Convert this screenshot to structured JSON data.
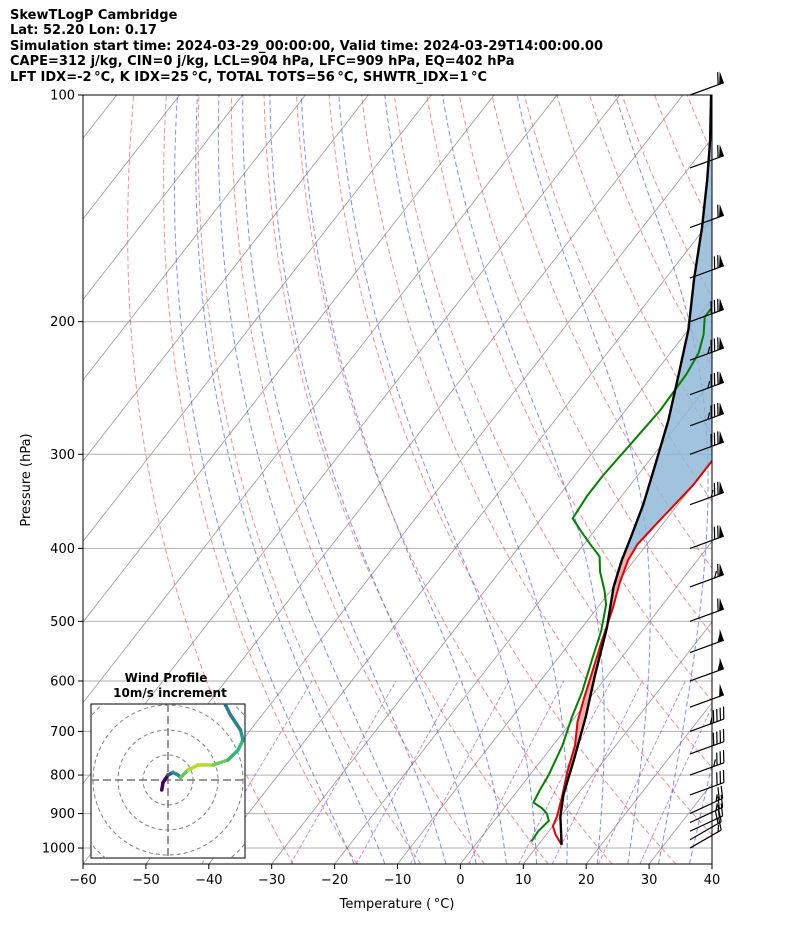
{
  "header": {
    "line1": "SkewTLogP Cambridge",
    "line2": "Lat: 52.20   Lon: 0.17",
    "line3": "Simulation start time: 2024-03-29_00:00:00, Valid time: 2024-03-29T14:00:00.00",
    "line4": "CAPE=312 j/kg, CIN=0 j/kg, LCL=904 hPa, LFC=909 hPa, EQ=402 hPa",
    "line5": "LFT IDX=-2 °C, K IDX=25 °C, TOTAL TOTS=56 °C, SHWTR_IDX=1 °C"
  },
  "colors": {
    "temperature": "#e00000",
    "dewpoint": "#008000",
    "parcel": "#000000",
    "cape_fill": "#8ab4d6",
    "cin_fill": "#e88a8a",
    "dry_adiabat": "#ff4d4d",
    "moist_adiabat": "#3355ff",
    "mixing_ratio": "#9933cc",
    "isotherm": "#999999",
    "isobar": "#b0b0b0"
  },
  "chart_data": [
    {
      "type": "line",
      "subtype": "skew-t log-p",
      "title": "",
      "xlabel": "Temperature ( °C)",
      "ylabel": "Pressure (hPa)",
      "xlim": [
        -60,
        40
      ],
      "ylim": [
        1050,
        100
      ],
      "y_scale": "log",
      "grid": true,
      "xticks": [
        "−60",
        "−50",
        "−40",
        "−30",
        "−20",
        "−10",
        "0",
        "10",
        "20",
        "30",
        "40"
      ],
      "yticks": [
        "100",
        "200",
        "300",
        "400",
        "500",
        "600",
        "700",
        "800",
        "900",
        "1000"
      ],
      "series": [
        {
          "role": "temperature",
          "points": [
            [
              13.7,
              990
            ],
            [
              11.5,
              960
            ],
            [
              10,
              935
            ],
            [
              9.5,
              910
            ],
            [
              8,
              860
            ],
            [
              5.5,
              790
            ],
            [
              3.5,
              730
            ],
            [
              1,
              680
            ],
            [
              -1,
              630
            ],
            [
              -3,
              580
            ],
            [
              -5,
              535
            ],
            [
              -7.5,
              480
            ],
            [
              -9.5,
              445
            ],
            [
              -11,
              415
            ],
            [
              -11.5,
              395
            ],
            [
              -11,
              370
            ],
            [
              -10.5,
              350
            ],
            [
              -10,
              330
            ],
            [
              -10,
              305
            ],
            [
              -9.5,
              280
            ],
            [
              -8,
              260
            ],
            [
              -4.5,
              230
            ],
            [
              -1.5,
              210
            ],
            [
              2.5,
              195
            ],
            [
              5,
              182
            ],
            [
              7,
              170
            ],
            [
              8,
              160
            ],
            [
              9,
              150
            ],
            [
              10,
              140
            ],
            [
              11.5,
              130
            ],
            [
              13,
              122
            ],
            [
              15,
              116
            ],
            [
              17,
              110
            ],
            [
              19.5,
              106
            ],
            [
              21,
              103
            ],
            [
              22,
              100
            ]
          ]
        },
        {
          "role": "dewpoint",
          "points": [
            [
              8.5,
              980
            ],
            [
              8.3,
              950
            ],
            [
              8.7,
              920
            ],
            [
              7.5,
              900
            ],
            [
              6,
              885
            ],
            [
              4,
              870
            ],
            [
              3.5,
              840
            ],
            [
              3,
              800
            ],
            [
              1.5,
              730
            ],
            [
              -0.5,
              670
            ],
            [
              -2,
              620
            ],
            [
              -4.5,
              560
            ],
            [
              -6.5,
              515
            ],
            [
              -9,
              475
            ],
            [
              -11,
              455
            ],
            [
              -14,
              430
            ],
            [
              -16,
              410
            ],
            [
              -19,
              395
            ],
            [
              -22,
              380
            ],
            [
              -25,
              365
            ],
            [
              -25.5,
              340
            ],
            [
              -25.5,
              320
            ],
            [
              -25,
              290
            ],
            [
              -24.5,
              262
            ],
            [
              -24.8,
              235
            ],
            [
              -25.5,
              220
            ],
            [
              -27,
              208
            ],
            [
              -29,
              197
            ],
            [
              -29,
              185
            ],
            [
              -27.5,
              175
            ],
            [
              -25,
              160
            ],
            [
              -22,
              144
            ],
            [
              -19.5,
              131
            ],
            [
              -17,
              120
            ],
            [
              -14.5,
              110
            ],
            [
              -13,
              104
            ],
            [
              -12,
              100
            ]
          ]
        },
        {
          "role": "parcel",
          "points": [
            [
              13.7,
              990
            ],
            [
              10,
              908
            ],
            [
              7.8,
              850
            ],
            [
              5,
              760
            ],
            [
              1.7,
              670
            ],
            [
              -2,
              590
            ],
            [
              -6,
              510
            ],
            [
              -10,
              450
            ],
            [
              -12,
              415
            ],
            [
              -13.5,
              385
            ],
            [
              -15.5,
              350
            ],
            [
              -18.5,
              310
            ],
            [
              -22,
              270
            ],
            [
              -26,
              235
            ],
            [
              -30,
              205
            ],
            [
              -35.5,
              175
            ],
            [
              -40.5,
              150
            ],
            [
              -45.5,
              130
            ],
            [
              -50,
              115
            ],
            [
              -55.5,
              100
            ]
          ]
        }
      ],
      "shaded_regions": [
        {
          "label": "CAPE",
          "between": [
            "parcel",
            "temperature"
          ],
          "pressure_range": [
            402,
            100
          ]
        },
        {
          "label": "CIN",
          "between": [
            "parcel",
            "temperature"
          ],
          "pressure_range": [
            908,
            402
          ]
        }
      ],
      "wind_barbs": {
        "levels_hpa": [
          1000,
          975,
          950,
          925,
          900,
          850,
          800,
          750,
          700,
          650,
          600,
          550,
          500,
          450,
          400,
          350,
          300,
          275,
          250,
          225,
          200,
          175,
          150,
          125,
          100
        ],
        "speeds_kt": [
          15,
          20,
          20,
          25,
          25,
          30,
          35,
          40,
          45,
          50,
          55,
          55,
          60,
          65,
          70,
          75,
          80,
          85,
          85,
          85,
          80,
          70,
          60,
          60,
          60
        ],
        "direction_deg": [
          240,
          240,
          245,
          245,
          245,
          250,
          250,
          250,
          250,
          250,
          250,
          250,
          250,
          250,
          250,
          250,
          250,
          250,
          250,
          250,
          250,
          250,
          250,
          250,
          250
        ]
      }
    },
    {
      "type": "scatter",
      "subtype": "hodograph",
      "title": "Wind Profile",
      "subtitle": "10m/s increment",
      "ring_spacing_ms": 10,
      "points": [
        [
          -2.5,
          -4
        ],
        [
          -2,
          -1
        ],
        [
          0,
          2
        ],
        [
          2,
          3
        ],
        [
          4,
          2
        ],
        [
          5,
          1
        ],
        [
          8,
          4
        ],
        [
          12,
          6
        ],
        [
          18,
          6
        ],
        [
          24,
          8
        ],
        [
          28,
          12
        ],
        [
          30,
          16
        ],
        [
          29,
          20
        ],
        [
          25,
          26
        ],
        [
          23,
          30
        ],
        [
          26,
          34
        ]
      ]
    }
  ]
}
